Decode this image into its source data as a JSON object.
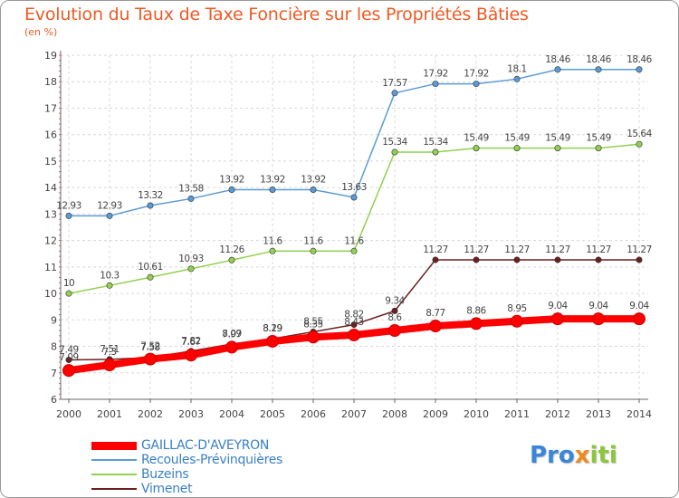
{
  "title": "Evolution du Taux de Taxe Foncière sur les Propriétés Bâties",
  "unit_label": "(en %)",
  "brand": {
    "p": "Pro",
    "x": "x",
    "i": "iti"
  },
  "legend": [
    {
      "label": "GAILLAC-D'AVEYRON",
      "color": "#ff0000"
    },
    {
      "label": "Recoules-Prévinquières",
      "color": "#5b9bd5"
    },
    {
      "label": "Buzeins",
      "color": "#92d050"
    },
    {
      "label": "Vimenet",
      "color": "#6b1f1f"
    }
  ],
  "chart_data": {
    "type": "line",
    "title": "Evolution du Taux de Taxe Foncière sur les Propriétés Bâties",
    "ylabel": "(en %)",
    "xlabel": "",
    "x": [
      2000,
      2001,
      2002,
      2003,
      2004,
      2005,
      2006,
      2007,
      2008,
      2009,
      2010,
      2011,
      2012,
      2013,
      2014
    ],
    "ylim": [
      6,
      19
    ],
    "yticks": [
      6,
      7,
      8,
      9,
      10,
      11,
      12,
      13,
      14,
      15,
      16,
      17,
      18,
      19
    ],
    "series": [
      {
        "name": "Recoules-Prévinquières",
        "color": "#5b9bd5",
        "point_color": "#5b9bd5",
        "values": [
          12.93,
          12.93,
          13.32,
          13.58,
          13.92,
          13.92,
          13.92,
          13.63,
          17.57,
          17.92,
          17.92,
          18.1,
          18.46,
          18.46,
          18.46
        ],
        "labels": [
          "12.93",
          "12.93",
          "13.32",
          "13.58",
          "13.92",
          "13.92",
          "13.92",
          "13.63",
          "17.57",
          "17.92",
          "17.92",
          "18.1",
          "18.46",
          "18.46",
          "18.46"
        ]
      },
      {
        "name": "Buzeins",
        "color": "#92d050",
        "point_color": "#92d050",
        "values": [
          10,
          10.3,
          10.61,
          10.93,
          11.26,
          11.6,
          11.6,
          11.6,
          15.34,
          15.34,
          15.49,
          15.49,
          15.49,
          15.49,
          15.64
        ],
        "labels": [
          "10",
          "10.3",
          "10.61",
          "10.93",
          "11.26",
          "11.6",
          "11.6",
          "11.6",
          "15.34",
          "15.34",
          "15.49",
          "15.49",
          "15.49",
          "15.49",
          "15.64"
        ]
      },
      {
        "name": "Vimenet",
        "color": "#6b1f1f",
        "point_color": "#6b1f1f",
        "values": [
          7.49,
          7.51,
          7.58,
          7.82,
          8.09,
          8.29,
          8.55,
          8.82,
          9.34,
          11.27,
          11.27,
          11.27,
          11.27,
          11.27,
          11.27
        ],
        "labels": [
          "7.49",
          "7.51",
          "7.58",
          "7.82",
          "8.09",
          "8.29",
          "8.55",
          "8.82",
          "9.34",
          "11.27",
          "11.27",
          "11.27",
          "11.27",
          "11.27",
          "11.27"
        ]
      },
      {
        "name": "GAILLAC-D'AVEYRON",
        "color": "#ff0000",
        "point_color": "#ff0000",
        "values": [
          7.09,
          7.3,
          7.52,
          7.67,
          7.97,
          8.19,
          8.35,
          8.43,
          8.6,
          8.77,
          8.86,
          8.95,
          9.04,
          9.04,
          9.04
        ],
        "labels": [
          "7.09",
          "7.3",
          "7.52",
          "7.67",
          "7.97",
          "8.19",
          "8.35",
          "8.43",
          "8.6",
          "8.77",
          "8.86",
          "8.95",
          "9.04",
          "9.04",
          "9.04"
        ]
      }
    ]
  }
}
